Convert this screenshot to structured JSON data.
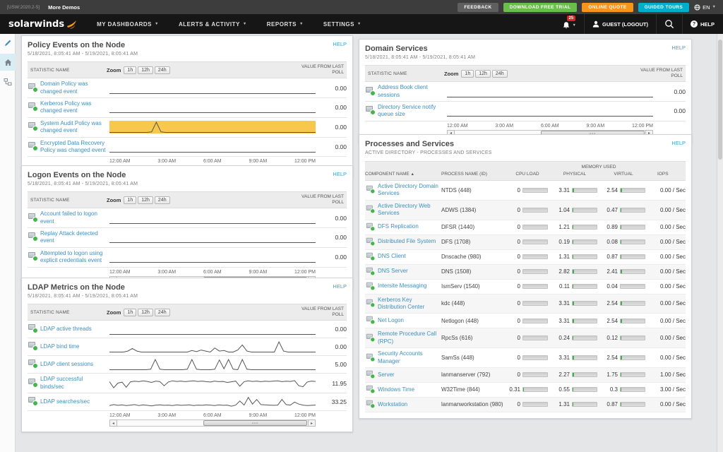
{
  "colors": {
    "accent_green": "#6abf4b",
    "accent_orange": "#f7941d",
    "accent_cyan": "#00aecc",
    "link_blue": "#3d8fc4",
    "highlight_yellow": "#f8c74d",
    "status_green": "#43b649",
    "badge_red": "#d8232a"
  },
  "utility_bar": {
    "version": "[USW:2020.2-5]",
    "more_demos": "More Demos",
    "feedback": "FEEDBACK",
    "download_trial": "DOWNLOAD FREE TRIAL",
    "online_quote": "ONLINE QUOTE",
    "guided_tours": "GUIDED TOURS",
    "language": "EN"
  },
  "navbar": {
    "brand": "solarwinds",
    "items": [
      {
        "label": "MY DASHBOARDS"
      },
      {
        "label": "ALERTS & ACTIVITY"
      },
      {
        "label": "REPORTS"
      },
      {
        "label": "SETTINGS"
      }
    ],
    "notification_count": "25",
    "user_label": "GUEST (LOGOUT)",
    "help_label": "HELP"
  },
  "shared": {
    "help_label": "HELP",
    "statistic_header": "STATISTIC NAME",
    "zoom_label": "Zoom",
    "zoom_options": [
      "1h",
      "12h",
      "24h"
    ],
    "value_header": "VALUE FROM LAST POLL",
    "time_axis": [
      "12:00 AM",
      "3:00 AM",
      "6:00 AM",
      "9:00 AM",
      "12:00 PM"
    ]
  },
  "chart_panels": [
    {
      "title": "Policy Events on the Node",
      "date_range": "5/18/2021, 8:05:41 AM - 5/19/2021, 8:05:41 AM",
      "rows": [
        {
          "name": "Domain Policy was changed event",
          "value": "0.00",
          "spark": [
            0,
            0
          ]
        },
        {
          "name": "Kerberos Policy was changed event",
          "value": "0.00",
          "spark": [
            0,
            0
          ]
        },
        {
          "name": "System Audit Policy was changed event",
          "value": "0.00",
          "highlight": true,
          "spark": [
            0,
            0,
            0,
            0,
            0,
            0,
            0,
            0,
            0,
            0.05,
            1,
            0.05,
            0,
            0,
            0,
            0,
            0,
            0,
            0,
            0,
            0,
            0,
            0,
            0,
            0,
            0,
            0,
            0,
            0,
            0,
            0,
            0,
            0,
            0,
            0,
            0,
            0,
            0,
            0,
            0,
            0,
            0,
            0,
            0,
            0
          ]
        },
        {
          "name": "Encrypted Data Recovery Policy was changed event",
          "value": "0.00",
          "spark": [
            0,
            0
          ]
        }
      ]
    },
    {
      "title": "Logon Events on the Node",
      "date_range": "5/18/2021, 8:05:41 AM - 5/19/2021, 8:05:41 AM",
      "rows": [
        {
          "name": "Account failed to logon event",
          "value": "0.00",
          "spark": [
            0,
            0
          ]
        },
        {
          "name": "Replay Attack detected event",
          "value": "0.00",
          "spark": [
            0,
            0
          ]
        },
        {
          "name": "Attempted to logon using explicit credentials event",
          "value": "0.00",
          "spark": [
            0,
            0
          ]
        }
      ]
    },
    {
      "title": "LDAP Metrics on the Node",
      "date_range": "5/18/2021, 8:05:41 AM - 5/19/2021, 8:05:41 AM",
      "rows": [
        {
          "name": "LDAP active threads",
          "value": "0.00",
          "spark": [
            0,
            0
          ]
        },
        {
          "name": "LDAP bind time",
          "value": "0.00",
          "spark": [
            0,
            0,
            0,
            0,
            0.1,
            0.35,
            0.1,
            0,
            0,
            0,
            0,
            0,
            0,
            0,
            0,
            0,
            0,
            0,
            0.15,
            0.05,
            0.2,
            0.1,
            0,
            0.4,
            0.1,
            0.15,
            0,
            0,
            0.2,
            0.7,
            0.1,
            0,
            0,
            0,
            0,
            0,
            0,
            1,
            0.1,
            0,
            0,
            0,
            0,
            0,
            0,
            0
          ]
        },
        {
          "name": "LDAP client sessions",
          "value": "5.00",
          "spark": [
            0,
            0,
            0,
            0,
            0,
            0,
            0,
            0,
            0,
            0.05,
            1,
            0.05,
            0,
            0,
            0,
            0,
            0,
            0.05,
            1,
            0.05,
            0,
            0,
            0,
            0.05,
            0.95,
            0.1,
            1,
            0.05,
            0,
            1,
            0.05,
            0,
            0,
            0,
            0,
            0,
            0,
            0,
            0,
            0,
            0,
            0,
            0,
            0,
            0,
            0
          ]
        },
        {
          "name": "LDAP successful binds/sec",
          "value": "11.95",
          "spark": [
            0.7,
            0.1,
            0.55,
            0.65,
            0.15,
            0.68,
            0.74,
            0.7,
            0.78,
            0.72,
            0.62,
            0.75,
            0.7,
            0.3,
            0.66,
            0.78,
            0.72,
            0.75,
            0.7,
            0.74,
            0.78,
            0.72,
            0.75,
            0.7,
            0.66,
            0.75,
            0.7,
            0.72,
            0.62,
            0.68,
            0.75,
            0.25,
            0.7,
            0.78,
            0.72,
            0.75,
            0.7,
            0.74,
            0.72,
            0.75,
            0.78,
            0.7,
            0.74,
            0.72,
            0.8,
            0.3,
            0.2,
            0.66,
            0.75,
            0.72
          ]
        },
        {
          "name": "LDAP searches/sec",
          "value": "33.25",
          "spark": [
            0.15,
            0.25,
            0.18,
            0.22,
            0.15,
            0.2,
            0.25,
            0.15,
            0.22,
            0.18,
            0.12,
            0.2,
            0.22,
            0.18,
            0.2,
            0.15,
            0.22,
            0.18,
            0.2,
            0.22,
            0.15,
            0.2,
            0.18,
            0.22,
            0.2,
            0.15,
            0.22,
            0.18,
            0.2,
            0.1,
            0.2,
            0.6,
            0.2,
            0.95,
            0.3,
            0.75,
            0.25,
            0.22,
            0.2,
            0.18,
            0.2,
            0.75,
            0.25,
            0.2,
            0.5,
            0.3,
            0.2,
            0.15,
            0.18,
            0.2
          ]
        }
      ]
    },
    {
      "title": "Domain Services",
      "date_range": "5/18/2021, 8:05:41 AM - 5/19/2021, 8:05:41 AM",
      "rows": [
        {
          "name": "Address Book client sessions",
          "value": "0.00",
          "spark": [
            0,
            0
          ]
        },
        {
          "name": "Directory Service notify queue size",
          "value": "0.00",
          "spark": [
            0,
            0
          ]
        }
      ]
    }
  ],
  "processes": {
    "title": "Processes and Services",
    "subtitle": "ACTIVE DIRECTORY - PROCESSES AND SERVICES",
    "help_label": "HELP",
    "headers": {
      "memory_group": "MEMORY USED",
      "component": "COMPONENT NAME",
      "sort_indicator": "▲",
      "process": "PROCESS NAME (ID)",
      "cpu": "CPU LOAD",
      "physical": "PHYSICAL",
      "virtual": "VIRTUAL",
      "iops": "IOPS"
    },
    "rows": [
      {
        "name": "Active Directory Domain Services",
        "process": "NTDS (448)",
        "cpu": "0",
        "cpu_pct": 0,
        "physical": "3.31",
        "phys_pct": 7,
        "virtual": "2.54",
        "virt_pct": 6,
        "iops": "0.00 / Sec"
      },
      {
        "name": "Active Directory Web Services",
        "process": "ADWS (1384)",
        "cpu": "0",
        "cpu_pct": 0,
        "physical": "1.04",
        "phys_pct": 3,
        "virtual": "0.47",
        "virt_pct": 2,
        "iops": "0.00 / Sec"
      },
      {
        "name": "DFS Replication",
        "process": "DFSR (1440)",
        "cpu": "0",
        "cpu_pct": 0,
        "physical": "1.21",
        "phys_pct": 3,
        "virtual": "0.89",
        "virt_pct": 2,
        "iops": "0.00 / Sec"
      },
      {
        "name": "Distributed File System",
        "process": "DFS (1708)",
        "cpu": "0",
        "cpu_pct": 0,
        "physical": "0.19",
        "phys_pct": 1,
        "virtual": "0.08",
        "virt_pct": 1,
        "iops": "0.00 / Sec"
      },
      {
        "name": "DNS Client",
        "process": "Dnscache (980)",
        "cpu": "0",
        "cpu_pct": 0,
        "physical": "1.31",
        "phys_pct": 3,
        "virtual": "0.87",
        "virt_pct": 2,
        "iops": "0.00 / Sec"
      },
      {
        "name": "DNS Server",
        "process": "DNS (1508)",
        "cpu": "0",
        "cpu_pct": 0,
        "physical": "2.82",
        "phys_pct": 6,
        "virtual": "2.41",
        "virt_pct": 5,
        "iops": "0.00 / Sec"
      },
      {
        "name": "Intersite Messaging",
        "process": "IsmServ (1540)",
        "cpu": "0",
        "cpu_pct": 0,
        "physical": "0.11",
        "phys_pct": 1,
        "virtual": "0.04",
        "virt_pct": 0,
        "iops": "0.00 / Sec"
      },
      {
        "name": "Kerberos Key Distribution Center",
        "process": "kdc (448)",
        "cpu": "0",
        "cpu_pct": 0,
        "physical": "3.31",
        "phys_pct": 7,
        "virtual": "2.54",
        "virt_pct": 6,
        "iops": "0.00 / Sec"
      },
      {
        "name": "Net Logon",
        "process": "Netlogon (448)",
        "cpu": "0",
        "cpu_pct": 0,
        "physical": "3.31",
        "phys_pct": 7,
        "virtual": "2.54",
        "virt_pct": 6,
        "iops": "0.00 / Sec"
      },
      {
        "name": "Remote Procedure Call (RPC)",
        "process": "RpcSs (616)",
        "cpu": "0",
        "cpu_pct": 0,
        "physical": "0.24",
        "phys_pct": 1,
        "virtual": "0.12",
        "virt_pct": 1,
        "iops": "0.00 / Sec"
      },
      {
        "name": "Security Accounts Manager",
        "process": "SamSs (448)",
        "cpu": "0",
        "cpu_pct": 0,
        "physical": "3.31",
        "phys_pct": 7,
        "virtual": "2.54",
        "virt_pct": 6,
        "iops": "0.00 / Sec"
      },
      {
        "name": "Server",
        "process": "lanmanserver (792)",
        "cpu": "0",
        "cpu_pct": 0,
        "physical": "2.27",
        "phys_pct": 5,
        "virtual": "1.75",
        "virt_pct": 4,
        "iops": "1.00 / Sec"
      },
      {
        "name": "Windows Time",
        "process": "W32Time (844)",
        "cpu": "0.31",
        "cpu_pct": 2,
        "physical": "0.55",
        "phys_pct": 2,
        "virtual": "0.3",
        "virt_pct": 1,
        "iops": "3.00 / Sec"
      },
      {
        "name": "Workstation",
        "process": "lanmanworkstation (980)",
        "cpu": "0",
        "cpu_pct": 0,
        "physical": "1.31",
        "phys_pct": 3,
        "virtual": "0.87",
        "virt_pct": 2,
        "iops": "0.00 / Sec"
      }
    ]
  }
}
